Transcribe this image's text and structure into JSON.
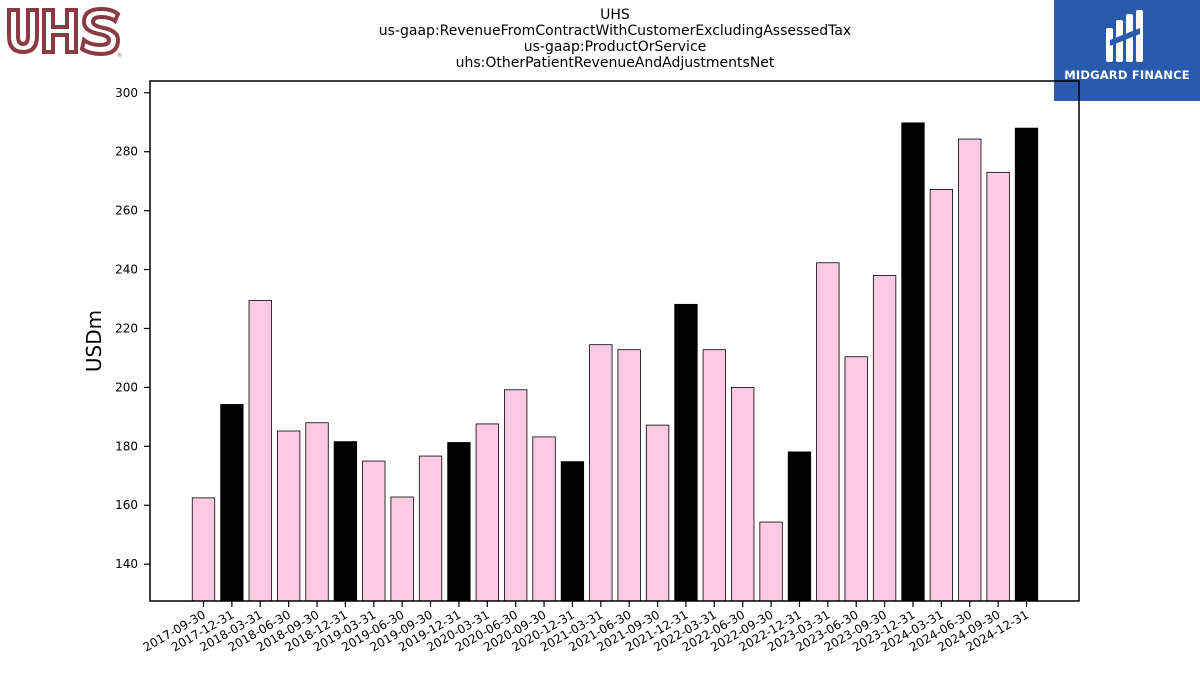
{
  "logos": {
    "left": "UHS",
    "right": "MIDGARD FINANCE"
  },
  "chart_data": {
    "type": "bar",
    "title_lines": [
      "UHS",
      "us-gaap:RevenueFromContractWithCustomerExcludingAssessedTax",
      "us-gaap:ProductOrService",
      "uhs:OtherPatientRevenueAndAdjustmentsNet"
    ],
    "ylabel": "USDm",
    "xlabel": "",
    "ylim": [
      127.5,
      304
    ],
    "yticks": [
      140,
      160,
      180,
      200,
      220,
      240,
      260,
      280,
      300
    ],
    "grid": false,
    "colors": {
      "quarter": "#fccbe3",
      "year_end": "#000000",
      "edge": "#000000"
    },
    "categories": [
      "2017-09-30",
      "2017-12-31",
      "2018-03-31",
      "2018-06-30",
      "2018-09-30",
      "2018-12-31",
      "2019-03-31",
      "2019-06-30",
      "2019-09-30",
      "2019-12-31",
      "2020-03-31",
      "2020-06-30",
      "2020-09-30",
      "2020-12-31",
      "2021-03-31",
      "2021-06-30",
      "2021-09-30",
      "2021-12-31",
      "2022-03-31",
      "2022-06-30",
      "2022-09-30",
      "2022-12-31",
      "2023-03-31",
      "2023-06-30",
      "2023-09-30",
      "2023-12-31",
      "2024-03-31",
      "2024-06-30",
      "2024-09-30",
      "2024-12-31"
    ],
    "values": [
      162.5,
      194.2,
      229.5,
      185.2,
      188.0,
      181.6,
      175.0,
      162.8,
      176.7,
      181.3,
      187.6,
      199.2,
      183.2,
      174.8,
      214.5,
      212.8,
      187.2,
      228.2,
      212.8,
      200.0,
      154.3,
      178.1,
      242.3,
      210.4,
      238.0,
      289.8,
      267.2,
      284.3,
      273.0,
      288.0
    ]
  }
}
